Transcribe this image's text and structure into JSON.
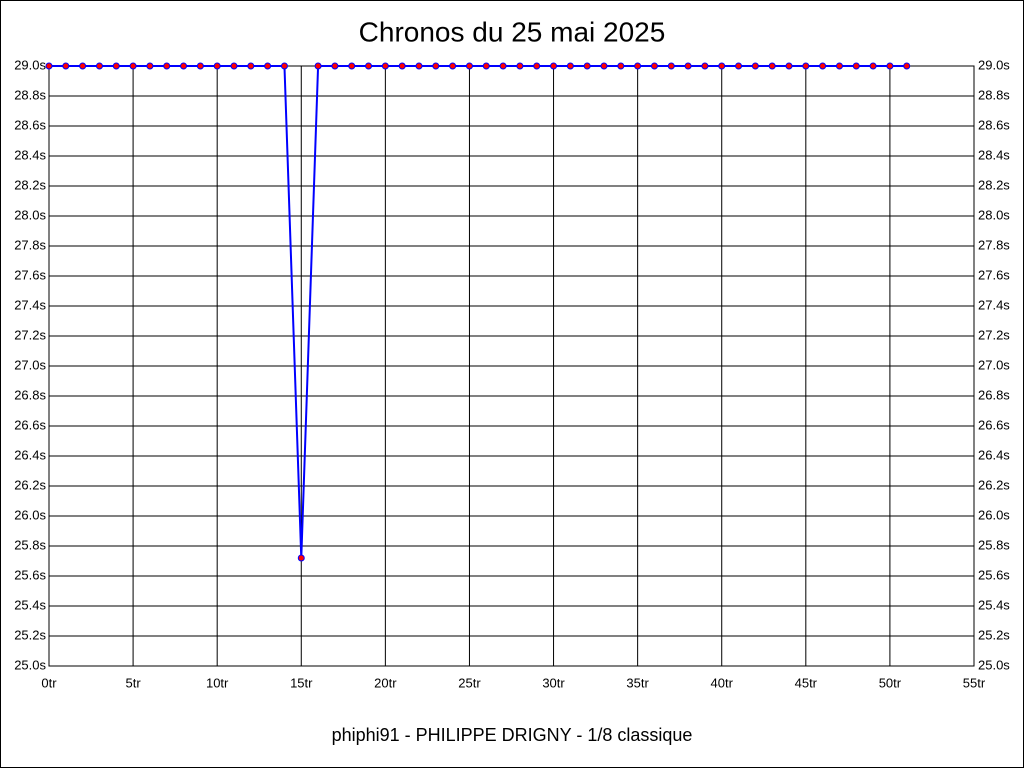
{
  "chart_data": {
    "type": "line",
    "title": "Chronos du 25 mai 2025",
    "footer": "phiphi91 - PHILIPPE DRIGNY - 1/8 classique",
    "x": [
      0,
      1,
      2,
      3,
      4,
      5,
      6,
      7,
      8,
      9,
      10,
      11,
      12,
      13,
      14,
      15,
      16,
      17,
      18,
      19,
      20,
      21,
      22,
      23,
      24,
      25,
      26,
      27,
      28,
      29,
      30,
      31,
      32,
      33,
      34,
      35,
      36,
      37,
      38,
      39,
      40,
      41,
      42,
      43,
      44,
      45,
      46,
      47,
      48,
      49,
      50,
      51
    ],
    "series": [
      {
        "values": [
          29,
          29,
          29,
          29,
          29,
          29,
          29,
          29,
          29,
          29,
          29,
          29,
          29,
          29,
          29,
          25.72,
          29,
          29,
          29,
          29,
          29,
          29,
          29,
          29,
          29,
          29,
          29,
          29,
          29,
          29,
          29,
          29,
          29,
          29,
          29,
          29,
          29,
          29,
          29,
          29,
          29,
          29,
          29,
          29,
          29,
          29,
          29,
          29,
          29,
          29,
          29,
          29
        ],
        "color": "#0000ff",
        "marker_color": "#ff0000"
      }
    ],
    "xlim": [
      0,
      55
    ],
    "xticks": [
      {
        "value": 0,
        "label": "0tr"
      },
      {
        "value": 5,
        "label": "5tr"
      },
      {
        "value": 10,
        "label": "10tr"
      },
      {
        "value": 15,
        "label": "15tr"
      },
      {
        "value": 20,
        "label": "20tr"
      },
      {
        "value": 25,
        "label": "25tr"
      },
      {
        "value": 30,
        "label": "30tr"
      },
      {
        "value": 35,
        "label": "35tr"
      },
      {
        "value": 40,
        "label": "40tr"
      },
      {
        "value": 45,
        "label": "45tr"
      },
      {
        "value": 50,
        "label": "50tr"
      },
      {
        "value": 55,
        "label": "55tr"
      }
    ],
    "ylim": [
      25,
      29
    ],
    "yticks": [
      {
        "value": 25,
        "label": "25.0s"
      },
      {
        "value": 25.2,
        "label": "25.2s"
      },
      {
        "value": 25.4,
        "label": "25.4s"
      },
      {
        "value": 25.6,
        "label": "25.6s"
      },
      {
        "value": 25.8,
        "label": "25.8s"
      },
      {
        "value": 26,
        "label": "26.0s"
      },
      {
        "value": 26.2,
        "label": "26.2s"
      },
      {
        "value": 26.4,
        "label": "26.4s"
      },
      {
        "value": 26.6,
        "label": "26.6s"
      },
      {
        "value": 26.8,
        "label": "26.8s"
      },
      {
        "value": 27,
        "label": "27.0s"
      },
      {
        "value": 27.2,
        "label": "27.2s"
      },
      {
        "value": 27.4,
        "label": "27.4s"
      },
      {
        "value": 27.6,
        "label": "27.6s"
      },
      {
        "value": 27.8,
        "label": "27.8s"
      },
      {
        "value": 28,
        "label": "28.0s"
      },
      {
        "value": 28.2,
        "label": "28.2s"
      },
      {
        "value": 28.4,
        "label": "28.4s"
      },
      {
        "value": 28.6,
        "label": "28.6s"
      },
      {
        "value": 28.8,
        "label": "28.8s"
      },
      {
        "value": 29,
        "label": "29.0s"
      }
    ],
    "grid": true
  }
}
